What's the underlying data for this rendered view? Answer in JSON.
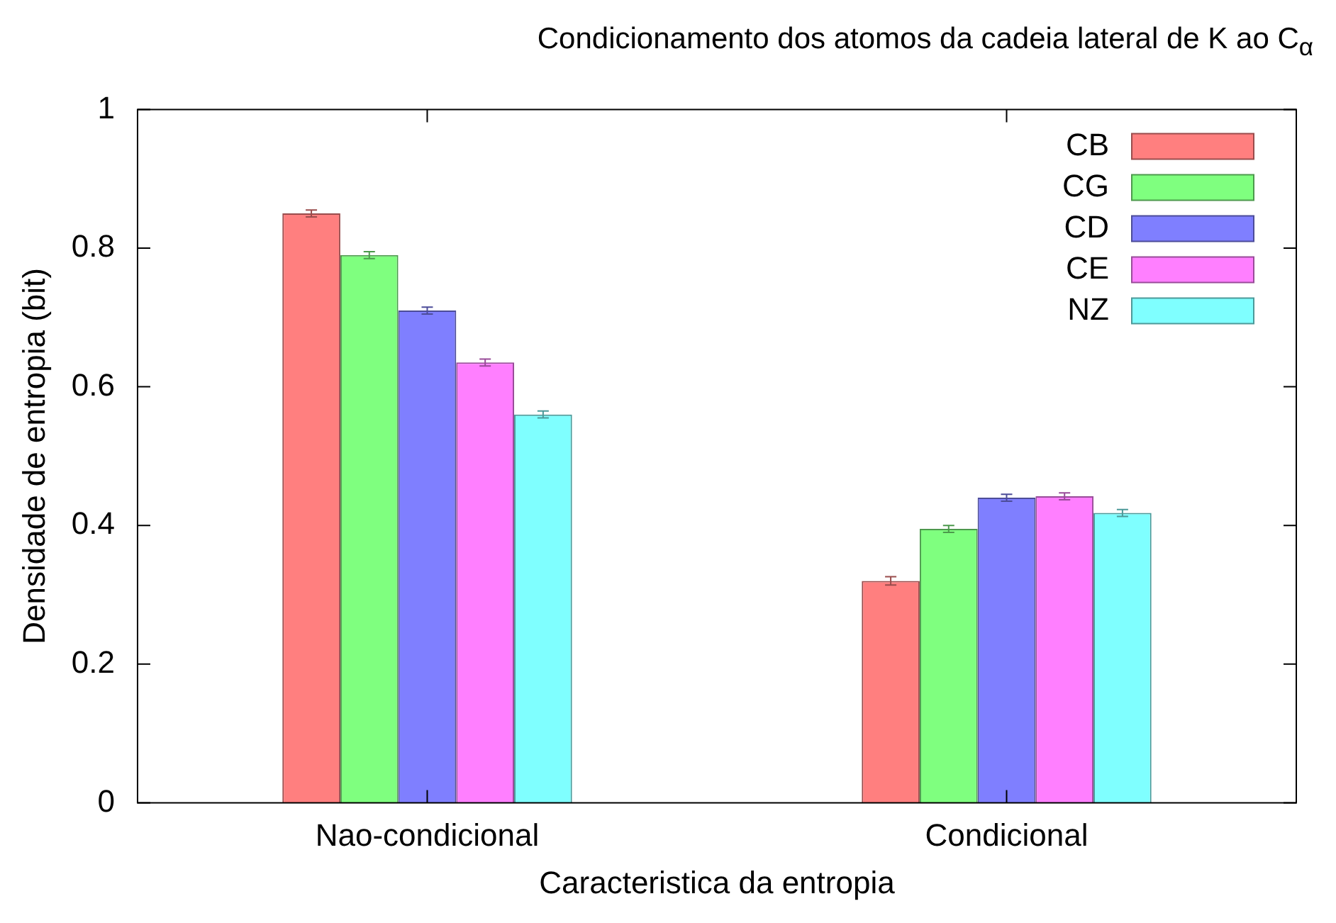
{
  "chart_data": {
    "type": "bar",
    "title": "Condicionamento dos atomos da cadeia lateral de K ao C$_{α}$",
    "xlabel": "Caracteristica da entropia",
    "ylabel": "Densidade de entropia (bit)",
    "categories": [
      "Nao-condicional",
      "Condicional"
    ],
    "series": [
      {
        "name": "CB",
        "color": "#ff7f7f",
        "values": [
          0.85,
          0.32
        ],
        "errors": [
          0.005,
          0.006
        ]
      },
      {
        "name": "CG",
        "color": "#7fff7f",
        "values": [
          0.79,
          0.395
        ],
        "errors": [
          0.005,
          0.005
        ]
      },
      {
        "name": "CD",
        "color": "#7f7fff",
        "values": [
          0.71,
          0.44
        ],
        "errors": [
          0.005,
          0.005
        ]
      },
      {
        "name": "CE",
        "color": "#ff7fff",
        "values": [
          0.635,
          0.442
        ],
        "errors": [
          0.005,
          0.005
        ]
      },
      {
        "name": "NZ",
        "color": "#7fffff",
        "values": [
          0.56,
          0.418
        ],
        "errors": [
          0.005,
          0.005
        ]
      }
    ],
    "ylim": [
      0,
      1
    ],
    "yticks": [
      0,
      0.2,
      0.4,
      0.6,
      0.8,
      1
    ],
    "grid": false,
    "legend": "top right"
  }
}
